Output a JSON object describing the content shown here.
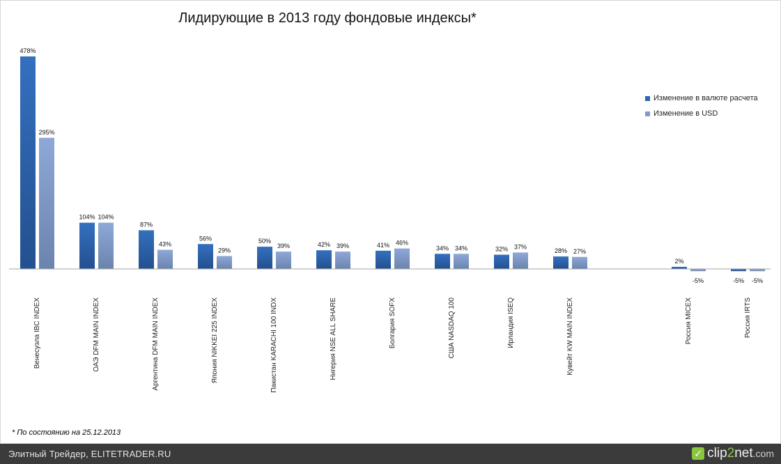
{
  "chart_data": {
    "type": "bar",
    "title": "Лидирующие в 2013 году фондовые индексы*",
    "categories": [
      "Венесуэла IBC INDEX",
      "ОАЭ DFM MAIN INDEX",
      "Аргентина DFM MAIN INDEX",
      "Япония NIKKEI 225 INDEX",
      "Пакистан KARACHI 100 INDX",
      "Нигерия NSE ALL SHARE",
      "Болгария SOFX",
      "США NASDAQ 100",
      "Ирландия ISEQ",
      "Кувейт KW MAIN INDEX",
      "",
      "Россия MICEX",
      "Россия IRTS"
    ],
    "series": [
      {
        "name": "Изменение в валюте расчета",
        "values": [
          478,
          104,
          87,
          56,
          50,
          42,
          41,
          34,
          32,
          28,
          null,
          2,
          -5
        ],
        "labels": [
          "478%",
          "104%",
          "87%",
          "56%",
          "50%",
          "42%",
          "41%",
          "34%",
          "32%",
          "28%",
          "",
          "2%",
          "-5%"
        ],
        "color": "#2e65b0"
      },
      {
        "name": "Изменение в USD",
        "values": [
          295,
          104,
          43,
          29,
          39,
          39,
          46,
          34,
          37,
          27,
          null,
          -5,
          -5
        ],
        "labels": [
          "295%",
          "104%",
          "43%",
          "29%",
          "39%",
          "39%",
          "46%",
          "34%",
          "37%",
          "27%",
          "",
          "-5%",
          "-5%"
        ],
        "color": "#7f9acb"
      }
    ],
    "legend_position": "right",
    "grid": false
  },
  "footnote": "* По состоянию на 25.12.2013",
  "footer": {
    "source_text": "Элитный Трейдер, ELITETRADER.RU",
    "brand_icon": "✓",
    "brand_pre": "clip",
    "brand_two": "2",
    "brand_net": "net",
    "brand_com": ".com"
  }
}
